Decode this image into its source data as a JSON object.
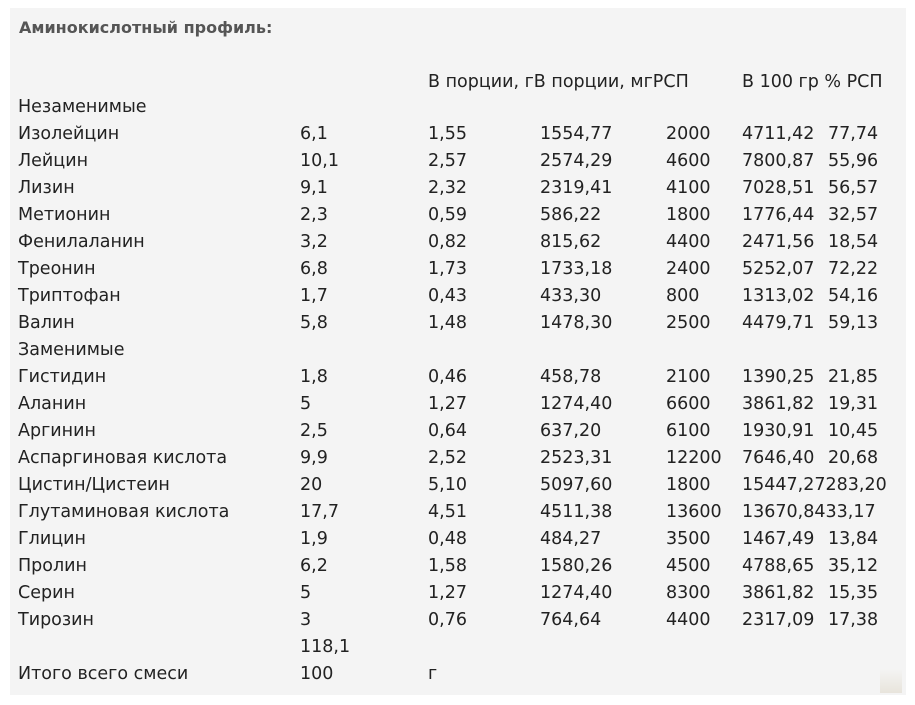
{
  "title": "Аминокислотный профиль:",
  "header": {
    "col_portion": "В порции, гВ порции, мгРСП",
    "col_100": "В 100 гр % РСП"
  },
  "rows": [
    {
      "c0": "Незаменимые",
      "c1": "",
      "c2": "",
      "c3": "",
      "c4": "",
      "c5": "",
      "c6": ""
    },
    {
      "c0": "Изолейцин",
      "c1": "6,1",
      "c2": "1,55",
      "c3": "1554,77",
      "c4": "2000",
      "c5": "4711,42",
      "c6": "77,74"
    },
    {
      "c0": "Лейцин",
      "c1": "10,1",
      "c2": "2,57",
      "c3": "2574,29",
      "c4": "4600",
      "c5": "7800,87",
      "c6": "55,96"
    },
    {
      "c0": "Лизин",
      "c1": "9,1",
      "c2": "2,32",
      "c3": "2319,41",
      "c4": "4100",
      "c5": "7028,51",
      "c6": "56,57"
    },
    {
      "c0": "Метионин",
      "c1": "2,3",
      "c2": "0,59",
      "c3": "586,22",
      "c4": "1800",
      "c5": "1776,44",
      "c6": "32,57"
    },
    {
      "c0": "Фенилаланин",
      "c1": "3,2",
      "c2": "0,82",
      "c3": "815,62",
      "c4": "4400",
      "c5": "2471,56",
      "c6": "18,54"
    },
    {
      "c0": "Треонин",
      "c1": "6,8",
      "c2": "1,73",
      "c3": "1733,18",
      "c4": "2400",
      "c5": "5252,07",
      "c6": "72,22"
    },
    {
      "c0": "Триптофан",
      "c1": "1,7",
      "c2": "0,43",
      "c3": "433,30",
      "c4": "800",
      "c5": "1313,02",
      "c6": "54,16"
    },
    {
      "c0": "Валин",
      "c1": "5,8",
      "c2": "1,48",
      "c3": "1478,30",
      "c4": "2500",
      "c5": "4479,71",
      "c6": "59,13"
    },
    {
      "c0": "Заменимые",
      "c1": "",
      "c2": "",
      "c3": "",
      "c4": "",
      "c5": "",
      "c6": ""
    },
    {
      "c0": "Гистидин",
      "c1": "1,8",
      "c2": "0,46",
      "c3": "458,78",
      "c4": "2100",
      "c5": "1390,25",
      "c6": "21,85"
    },
    {
      "c0": "Аланин",
      "c1": "5",
      "c2": "1,27",
      "c3": "1274,40",
      "c4": "6600",
      "c5": "3861,82",
      "c6": "19,31"
    },
    {
      "c0": "Аргинин",
      "c1": "2,5",
      "c2": "0,64",
      "c3": "637,20",
      "c4": "6100",
      "c5": "1930,91",
      "c6": "10,45"
    },
    {
      "c0": "Аспаргиновая кислота",
      "c1": "9,9",
      "c2": "2,52",
      "c3": "2523,31",
      "c4": "12200",
      "c5": "7646,40",
      "c6": "20,68"
    },
    {
      "c0": "Цистин/Цистеин",
      "c1": "20",
      "c2": "5,10",
      "c3": "5097,60",
      "c4": "1800",
      "c5": "15447,27283,20",
      "c6": ""
    },
    {
      "c0": "Глутаминовая кислота",
      "c1": "17,7",
      "c2": "4,51",
      "c3": "4511,38",
      "c4": "13600",
      "c5": "13670,8433,17",
      "c6": ""
    },
    {
      "c0": "Глицин",
      "c1": "1,9",
      "c2": "0,48",
      "c3": "484,27",
      "c4": "3500",
      "c5": "1467,49",
      "c6": "13,84"
    },
    {
      "c0": "Пролин",
      "c1": "6,2",
      "c2": "1,58",
      "c3": "1580,26",
      "c4": "4500",
      "c5": "4788,65",
      "c6": "35,12"
    },
    {
      "c0": "Серин",
      "c1": "5",
      "c2": "1,27",
      "c3": "1274,40",
      "c4": "8300",
      "c5": "3861,82",
      "c6": "15,35"
    },
    {
      "c0": "Тирозин",
      "c1": "3",
      "c2": "0,76",
      "c3": "764,64",
      "c4": "4400",
      "c5": "2317,09",
      "c6": "17,38"
    },
    {
      "c0": "",
      "c1": "118,1",
      "c2": "",
      "c3": "",
      "c4": "",
      "c5": "",
      "c6": ""
    },
    {
      "c0": "Итого всего смеси",
      "c1": "100",
      "c2": "г",
      "c3": "",
      "c4": "",
      "c5": "",
      "c6": ""
    }
  ]
}
